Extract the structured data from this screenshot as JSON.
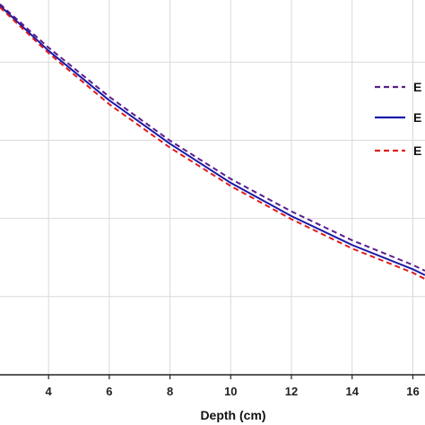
{
  "chart_data": {
    "type": "line",
    "xlabel": "Depth (cm)",
    "xlim": [
      2.4,
      16.4
    ],
    "ylim": [
      0,
      1
    ],
    "x_ticks": [
      4,
      6,
      8,
      10,
      12,
      14,
      16
    ],
    "x_tick_labels": [
      "4",
      "6",
      "8",
      "10",
      "12",
      "14",
      "16"
    ],
    "y_gridlines": [
      0.2,
      0.4,
      0.6,
      0.8
    ],
    "grid": true,
    "legend": {
      "position": "right",
      "entries": [
        "E",
        "E",
        "E"
      ]
    },
    "series": [
      {
        "name": "E",
        "color": "#5a1e8c",
        "dash": "dashed",
        "x": [
          2.4,
          4,
          6,
          8,
          10,
          12,
          14,
          16,
          16.4
        ],
        "y": [
          0.948,
          0.837,
          0.711,
          0.599,
          0.501,
          0.418,
          0.344,
          0.281,
          0.266
        ]
      },
      {
        "name": "E",
        "color": "#1a1aa8",
        "dash": "solid",
        "x": [
          2.4,
          4,
          6,
          8,
          10,
          12,
          14,
          16,
          16.4
        ],
        "y": [
          0.944,
          0.829,
          0.702,
          0.591,
          0.491,
          0.406,
          0.332,
          0.27,
          0.255
        ]
      },
      {
        "name": "E",
        "color": "#e01b1b",
        "dash": "dashed",
        "x": [
          2.4,
          4,
          6,
          8,
          10,
          12,
          14,
          16,
          16.4
        ],
        "y": [
          0.94,
          0.823,
          0.692,
          0.581,
          0.483,
          0.398,
          0.323,
          0.261,
          0.245
        ]
      }
    ]
  }
}
